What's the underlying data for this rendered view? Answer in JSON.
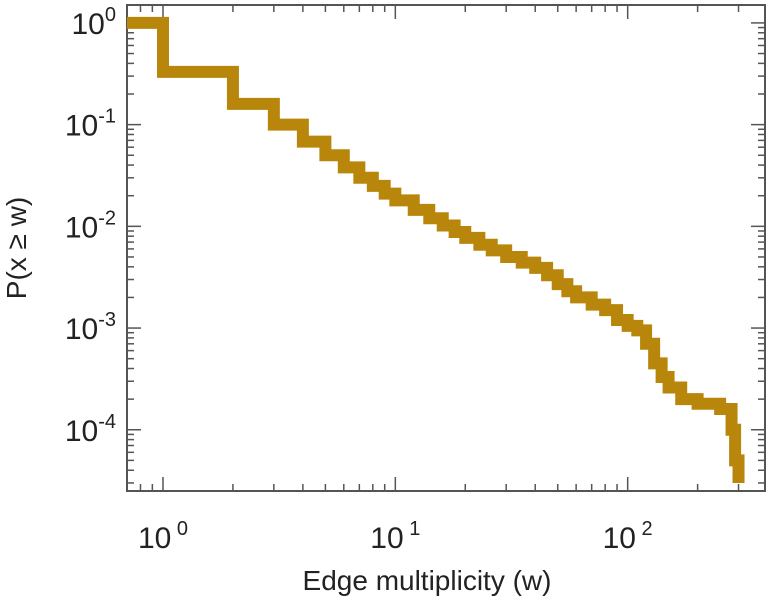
{
  "chart_data": {
    "type": "line",
    "title": "",
    "xlabel": "Edge multiplicity (w)",
    "ylabel": "P(x ≥ w)",
    "x_scale": "log",
    "y_scale": "log",
    "xlim": [
      0.7,
      390
    ],
    "ylim": [
      2.5e-05,
      1.5
    ],
    "grid": false,
    "line_color": "#b8860b",
    "step": true,
    "x_ticks": [
      {
        "value": 1,
        "base": "10",
        "exp": "0"
      },
      {
        "value": 10,
        "base": "10",
        "exp": "1"
      },
      {
        "value": 100,
        "base": "10",
        "exp": "2"
      }
    ],
    "y_ticks": [
      {
        "value": 1,
        "base": "10",
        "exp": "0"
      },
      {
        "value": 0.1,
        "base": "10",
        "exp": "-1"
      },
      {
        "value": 0.01,
        "base": "10",
        "exp": "-2"
      },
      {
        "value": 0.001,
        "base": "10",
        "exp": "-3"
      },
      {
        "value": 0.0001,
        "base": "10",
        "exp": "-4"
      }
    ],
    "series": [
      {
        "x": [
          0.7,
          1,
          2,
          3,
          4,
          5,
          6,
          7,
          8,
          9,
          10,
          12,
          14,
          16,
          18,
          20,
          23,
          26,
          30,
          35,
          40,
          45,
          50,
          55,
          60,
          70,
          80,
          90,
          100,
          110,
          120,
          130,
          140,
          150,
          170,
          200,
          250,
          280,
          290,
          300
        ],
        "y": [
          1.0,
          0.33,
          0.16,
          0.1,
          0.068,
          0.05,
          0.038,
          0.03,
          0.025,
          0.021,
          0.018,
          0.0145,
          0.012,
          0.0102,
          0.0088,
          0.0077,
          0.0066,
          0.0058,
          0.005,
          0.0044,
          0.0039,
          0.0033,
          0.0027,
          0.0023,
          0.002,
          0.0017,
          0.0015,
          0.0012,
          0.00105,
          0.00095,
          0.0007,
          0.00045,
          0.00033,
          0.00026,
          0.0002,
          0.00018,
          0.00016,
          0.0001,
          5e-05,
          3e-05
        ]
      }
    ]
  }
}
